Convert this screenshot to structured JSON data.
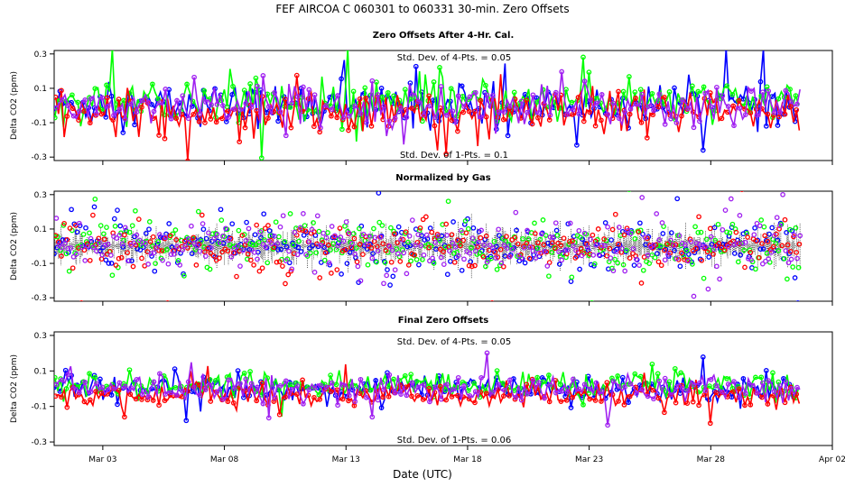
{
  "title": "FEF   AIRCOA C   060301 to 060331   30-min. Zero Offsets",
  "xlabel": "Date (UTC)",
  "colors": {
    "series1": "#0000ff",
    "series2": "#00ff00",
    "series3": "#ff0000",
    "series4": "#a020f0",
    "black": "#000000"
  },
  "chart_data": [
    {
      "type": "line",
      "title": "Zero Offsets After 4-Hr. Cal.",
      "ylabel": "Delta CO2 (ppm)",
      "ylim": [
        -0.32,
        0.32
      ],
      "yticks": [
        0.3,
        0.1,
        -0.1,
        -0.3
      ],
      "ytick_labels": [
        "0.3",
        "0.1",
        "-0.1",
        "-0.3"
      ],
      "xlim": [
        0,
        32
      ],
      "annotation_top": "Std. Dev. of 4-Pts. = 0.05",
      "annotation_bottom": "Std. Dev. of 1-Pts. = 0.1",
      "series_spread": 0.1
    },
    {
      "type": "scatter",
      "title": "Normalized by Gas",
      "ylabel": "Delta CO2 (ppm)",
      "ylim": [
        -0.32,
        0.32
      ],
      "yticks": [
        0.3,
        0.1,
        -0.1,
        -0.3
      ],
      "ytick_labels": [
        "0.3",
        "0.1",
        "-0.1",
        "-0.3"
      ],
      "xlim": [
        0,
        32
      ],
      "series_spread": 0.12
    },
    {
      "type": "line",
      "title": "Final Zero Offsets",
      "ylabel": "Delta CO2 (ppm)",
      "ylim": [
        -0.32,
        0.32
      ],
      "yticks": [
        0.3,
        0.1,
        -0.1,
        -0.3
      ],
      "ytick_labels": [
        "0.3",
        "0.1",
        "-0.1",
        "-0.3"
      ],
      "xlim": [
        0,
        32
      ],
      "annotation_top": "Std. Dev. of 4-Pts. = 0.05",
      "annotation_bottom": "Std. Dev. of 1-Pts. = 0.06",
      "series_spread": 0.06
    }
  ],
  "x_ticks": [
    {
      "value": 2,
      "label": "Mar 03"
    },
    {
      "value": 7,
      "label": "Mar 08"
    },
    {
      "value": 12,
      "label": "Mar 13"
    },
    {
      "value": 17,
      "label": "Mar 18"
    },
    {
      "value": 22,
      "label": "Mar 23"
    },
    {
      "value": 27,
      "label": "Mar 28"
    },
    {
      "value": 32,
      "label": "Apr 02"
    }
  ],
  "data_range": {
    "start": 0.0,
    "end": 30.7
  }
}
